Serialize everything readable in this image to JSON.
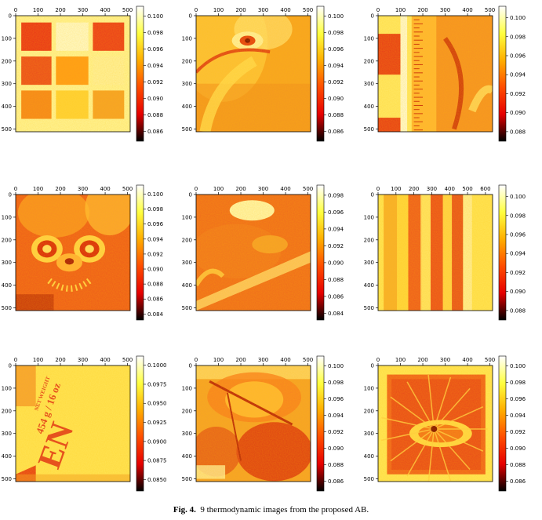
{
  "figure": {
    "caption_label": "Fig. 4.",
    "caption_text": "9 thermodynamic images from the proposed AB."
  },
  "colormap": {
    "name": "hot",
    "stops": [
      "#000000",
      "#e60000",
      "#ff4d00",
      "#ffae00",
      "#ffff40",
      "#ffffff"
    ]
  },
  "chart_data": [
    {
      "type": "heatmap",
      "content": "color test pattern of colored squares",
      "xticks": [
        "0",
        "100",
        "200",
        "300",
        "400",
        "500"
      ],
      "yticks": [
        "0",
        "100",
        "200",
        "300",
        "400",
        "500"
      ],
      "xlim": [
        0,
        512
      ],
      "ylim": [
        512,
        0
      ],
      "colorbar": {
        "ticks": [
          "0.086",
          "0.088",
          "0.090",
          "0.092",
          "0.094",
          "0.096",
          "0.098",
          "0.100"
        ],
        "range": [
          0.0848,
          0.1012
        ]
      }
    },
    {
      "type": "heatmap",
      "content": "close-up of an eye",
      "xticks": [
        "0",
        "100",
        "200",
        "300",
        "400",
        "500"
      ],
      "yticks": [
        "0",
        "100",
        "200",
        "300",
        "400",
        "500"
      ],
      "xlim": [
        0,
        512
      ],
      "ylim": [
        512,
        0
      ],
      "colorbar": {
        "ticks": [
          "0.086",
          "0.088",
          "0.090",
          "0.092",
          "0.094",
          "0.096",
          "0.098",
          "0.100"
        ],
        "range": [
          0.0848,
          0.1012
        ]
      }
    },
    {
      "type": "heatmap",
      "content": "ruler with stripe pattern",
      "xticks": [
        "0",
        "100",
        "200",
        "300",
        "400",
        "500"
      ],
      "yticks": [
        "0",
        "100",
        "200",
        "300",
        "400",
        "500"
      ],
      "xlim": [
        0,
        512
      ],
      "ylim": [
        512,
        0
      ],
      "colorbar": {
        "ticks": [
          "0.088",
          "0.090",
          "0.092",
          "0.094",
          "0.096",
          "0.098",
          "0.100"
        ],
        "range": [
          0.087,
          0.1012
        ]
      }
    },
    {
      "type": "heatmap",
      "content": "toy face with nose and mouth",
      "xticks": [
        "0",
        "100",
        "200",
        "300",
        "400",
        "500"
      ],
      "yticks": [
        "0",
        "100",
        "200",
        "300",
        "400",
        "500"
      ],
      "xlim": [
        0,
        512
      ],
      "ylim": [
        512,
        0
      ],
      "colorbar": {
        "ticks": [
          "0.084",
          "0.086",
          "0.088",
          "0.090",
          "0.092",
          "0.094",
          "0.096",
          "0.098",
          "0.100"
        ],
        "range": [
          0.0832,
          0.1012
        ]
      }
    },
    {
      "type": "heatmap",
      "content": "bright ellipse on textured surface",
      "xticks": [
        "0",
        "100",
        "200",
        "300",
        "400",
        "500"
      ],
      "yticks": [
        "0",
        "100",
        "200",
        "300",
        "400",
        "500"
      ],
      "xlim": [
        0,
        512
      ],
      "ylim": [
        512,
        0
      ],
      "colorbar": {
        "ticks": [
          "0.084",
          "0.086",
          "0.088",
          "0.090",
          "0.092",
          "0.094",
          "0.096",
          "0.098"
        ],
        "range": [
          0.0832,
          0.0992
        ]
      }
    },
    {
      "type": "heatmap",
      "content": "vertical stripes",
      "xticks": [
        "0",
        "100",
        "200",
        "300",
        "400",
        "500",
        "600"
      ],
      "yticks": [
        "0",
        "100",
        "200",
        "300",
        "400",
        "500"
      ],
      "xlim": [
        0,
        640
      ],
      "ylim": [
        512,
        0
      ],
      "colorbar": {
        "ticks": [
          "0.088",
          "0.090",
          "0.092",
          "0.094",
          "0.096",
          "0.098",
          "0.100"
        ],
        "range": [
          0.087,
          0.1012
        ]
      }
    },
    {
      "type": "heatmap",
      "content": "printed package text",
      "xticks": [
        "0",
        "100",
        "200",
        "300",
        "400",
        "500"
      ],
      "yticks": [
        "0",
        "100",
        "200",
        "300",
        "400",
        "500"
      ],
      "xlim": [
        0,
        512
      ],
      "ylim": [
        512,
        0
      ],
      "colorbar": {
        "ticks": [
          "0.0850",
          "0.0875",
          "0.0900",
          "0.0925",
          "0.0950",
          "0.0975",
          "0.1000"
        ],
        "range": [
          0.0835,
          0.1012
        ]
      },
      "annotations": [
        "NET WEIGHT",
        "454 g / 16 oz",
        "EN"
      ]
    },
    {
      "type": "heatmap",
      "content": "leaves",
      "xticks": [
        "0",
        "100",
        "200",
        "300",
        "400",
        "500"
      ],
      "yticks": [
        "0",
        "100",
        "200",
        "300",
        "400",
        "500"
      ],
      "xlim": [
        0,
        512
      ],
      "ylim": [
        512,
        0
      ],
      "colorbar": {
        "ticks": [
          "0.086",
          "0.088",
          "0.090",
          "0.092",
          "0.094",
          "0.096",
          "0.098",
          "0.100"
        ],
        "range": [
          0.0848,
          0.1012
        ]
      }
    },
    {
      "type": "heatmap",
      "content": "radial pattern in frame",
      "xticks": [
        "0",
        "100",
        "200",
        "300",
        "400",
        "500"
      ],
      "yticks": [
        "0",
        "100",
        "200",
        "300",
        "400",
        "500"
      ],
      "xlim": [
        0,
        512
      ],
      "ylim": [
        512,
        0
      ],
      "colorbar": {
        "ticks": [
          "0.086",
          "0.088",
          "0.090",
          "0.092",
          "0.094",
          "0.096",
          "0.098",
          "0.100"
        ],
        "range": [
          0.0848,
          0.1012
        ]
      }
    }
  ]
}
